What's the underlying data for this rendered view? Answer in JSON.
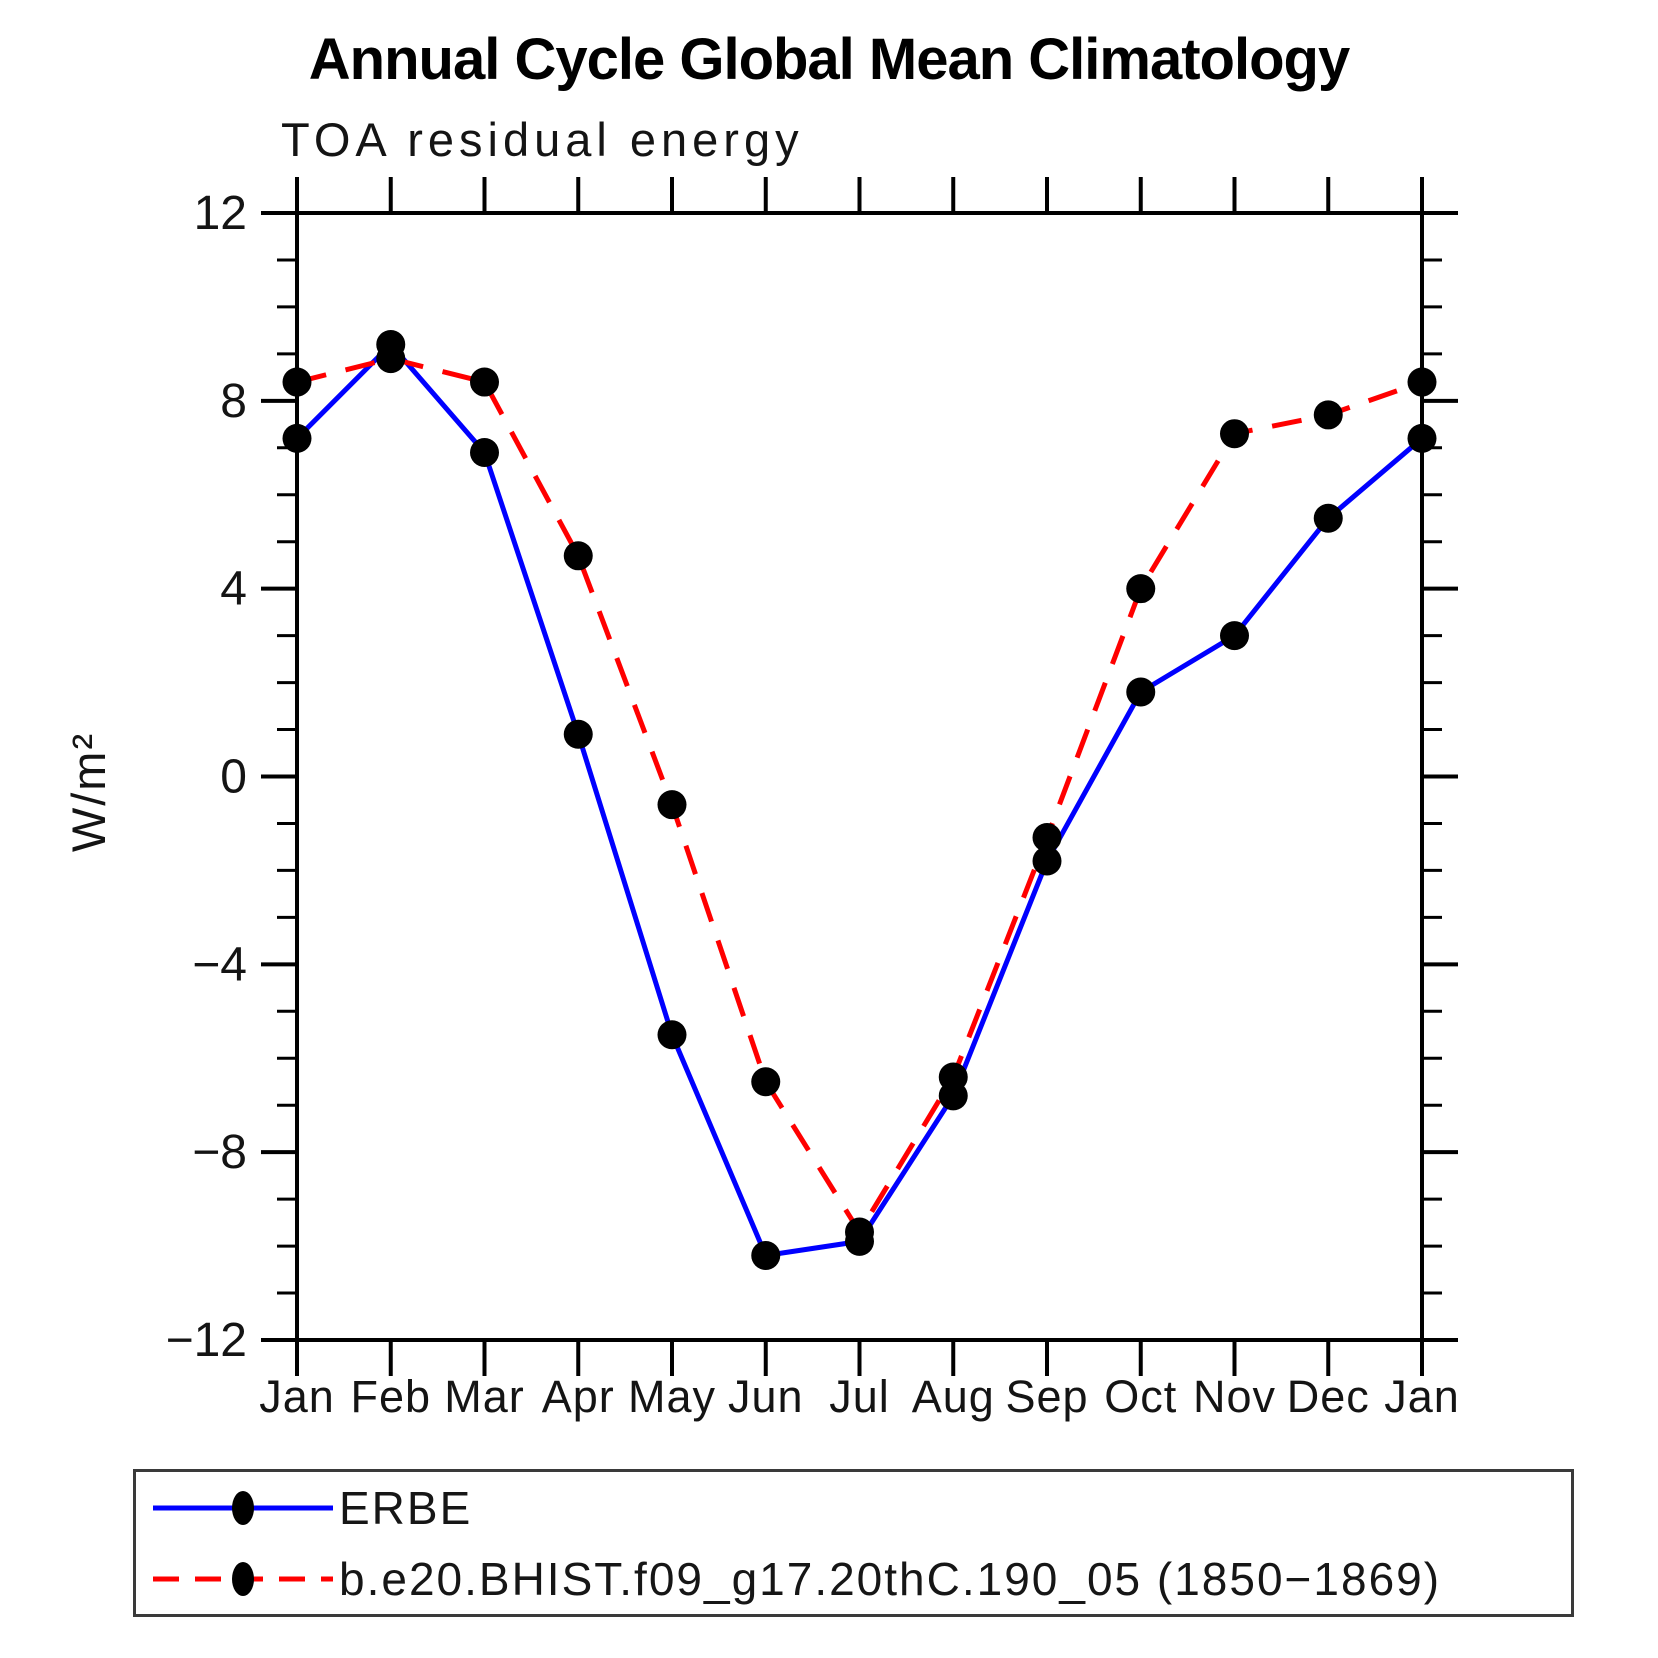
{
  "title": "Annual Cycle Global Mean Climatology",
  "subtitle": "TOA residual energy",
  "chart_data": {
    "type": "line",
    "categories": [
      "Jan",
      "Feb",
      "Mar",
      "Apr",
      "May",
      "Jun",
      "Jul",
      "Aug",
      "Sep",
      "Oct",
      "Nov",
      "Dec",
      "Jan"
    ],
    "ylabel": "W/m²",
    "ylim": [
      -12,
      12
    ],
    "ytick_major": 4,
    "ytick_minor": 1,
    "grid": false,
    "legend_position": "bottom-left-box",
    "marker": "filled-circle",
    "marker_color": "#000000",
    "axis_color": "#000000",
    "series": [
      {
        "name": "ERBE",
        "color": "#0000ff",
        "style": "solid",
        "values": [
          7.2,
          9.2,
          6.9,
          0.9,
          -5.5,
          -10.2,
          -9.9,
          -6.8,
          -1.8,
          1.8,
          3.0,
          5.5,
          7.2
        ]
      },
      {
        "name": "b.e20.BHIST.f09_g17.20thC.190_05 (1850−1869)",
        "color": "#ff0000",
        "style": "dashed",
        "values": [
          8.4,
          8.9,
          8.4,
          4.7,
          -0.6,
          -6.5,
          -9.7,
          -6.4,
          -1.3,
          4.0,
          7.3,
          7.7,
          8.4
        ]
      }
    ]
  }
}
